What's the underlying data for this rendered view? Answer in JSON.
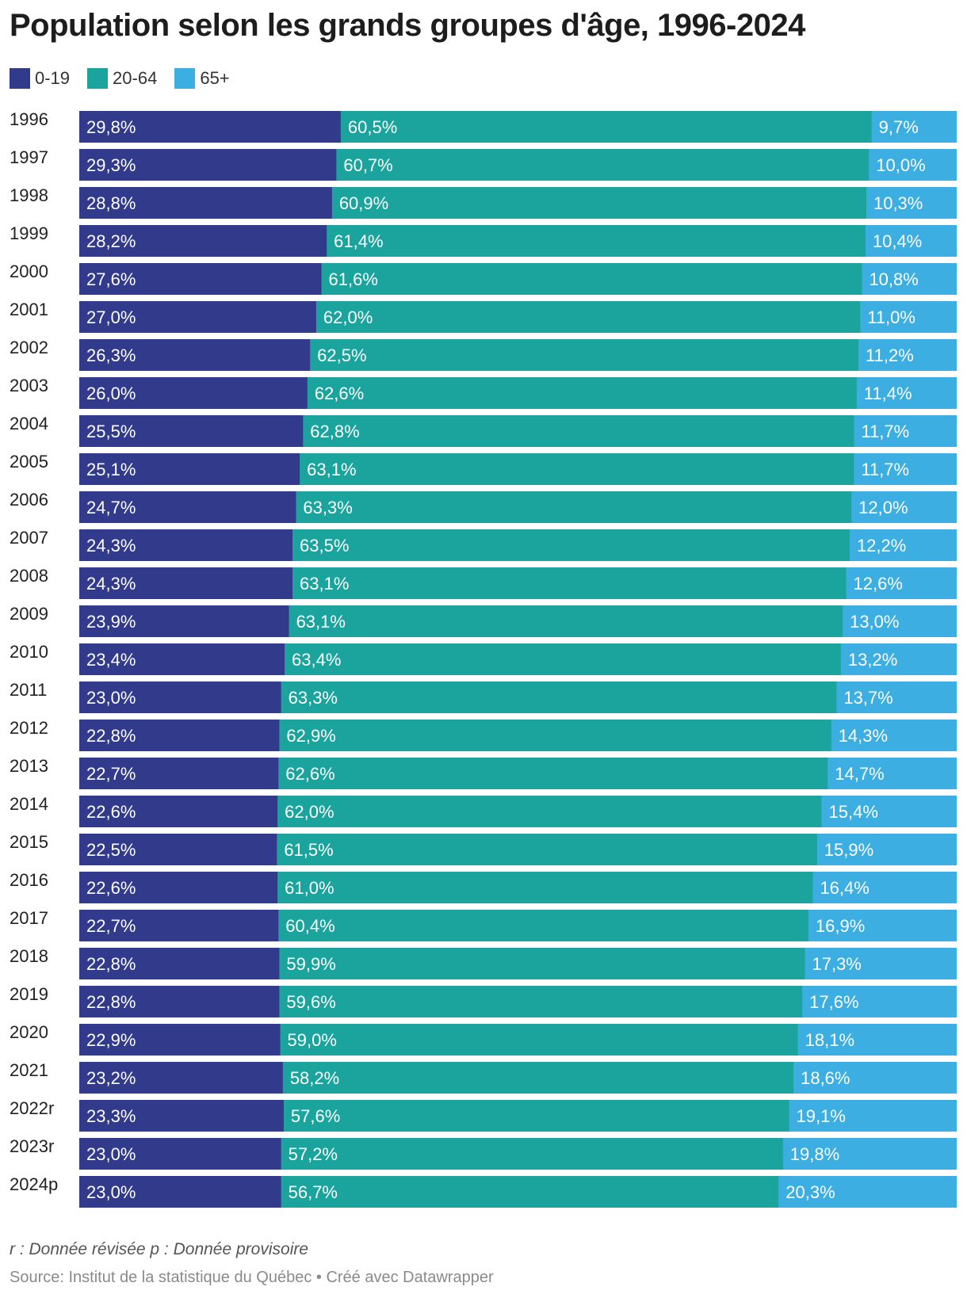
{
  "chart_data": {
    "type": "bar",
    "orientation": "horizontal",
    "stacked": true,
    "title": "Population selon les grands groupes d'âge, 1996-2024",
    "legend_position": "top-left",
    "categories": [
      "1996",
      "1997",
      "1998",
      "1999",
      "2000",
      "2001",
      "2002",
      "2003",
      "2004",
      "2005",
      "2006",
      "2007",
      "2008",
      "2009",
      "2010",
      "2011",
      "2012",
      "2013",
      "2014",
      "2015",
      "2016",
      "2017",
      "2018",
      "2019",
      "2020",
      "2021",
      "2022r",
      "2023r",
      "2024p"
    ],
    "series": [
      {
        "name": "0-19",
        "color": "#323a8c",
        "values": [
          29.8,
          29.3,
          28.8,
          28.2,
          27.6,
          27.0,
          26.3,
          26.0,
          25.5,
          25.1,
          24.7,
          24.3,
          24.3,
          23.9,
          23.4,
          23.0,
          22.8,
          22.7,
          22.6,
          22.5,
          22.6,
          22.7,
          22.8,
          22.8,
          22.9,
          23.2,
          23.3,
          23.0,
          23.0
        ]
      },
      {
        "name": "20-64",
        "color": "#1aa49d",
        "values": [
          60.5,
          60.7,
          60.9,
          61.4,
          61.6,
          62.0,
          62.5,
          62.6,
          62.8,
          63.1,
          63.3,
          63.5,
          63.1,
          63.1,
          63.4,
          63.3,
          62.9,
          62.6,
          62.0,
          61.5,
          61.0,
          60.4,
          59.9,
          59.6,
          59.0,
          58.2,
          57.6,
          57.2,
          56.7
        ]
      },
      {
        "name": "65+",
        "color": "#3caee1",
        "values": [
          9.7,
          10.0,
          10.3,
          10.4,
          10.8,
          11.0,
          11.2,
          11.4,
          11.7,
          11.7,
          12.0,
          12.2,
          12.6,
          13.0,
          13.2,
          13.7,
          14.3,
          14.7,
          15.4,
          15.9,
          16.4,
          16.9,
          17.3,
          17.6,
          18.1,
          18.6,
          19.1,
          19.8,
          20.3
        ]
      }
    ],
    "value_labels": {
      "0-19": [
        "29,8%",
        "29,3%",
        "28,8%",
        "28,2%",
        "27,6%",
        "27,0%",
        "26,3%",
        "26,0%",
        "25,5%",
        "25,1%",
        "24,7%",
        "24,3%",
        "24,3%",
        "23,9%",
        "23,4%",
        "23,0%",
        "22,8%",
        "22,7%",
        "22,6%",
        "22,5%",
        "22,6%",
        "22,7%",
        "22,8%",
        "22,8%",
        "22,9%",
        "23,2%",
        "23,3%",
        "23,0%",
        "23,0%"
      ],
      "20-64": [
        "60,5%",
        "60,7%",
        "60,9%",
        "61,4%",
        "61,6%",
        "62,0%",
        "62,5%",
        "62,6%",
        "62,8%",
        "63,1%",
        "63,3%",
        "63,5%",
        "63,1%",
        "63,1%",
        "63,4%",
        "63,3%",
        "62,9%",
        "62,6%",
        "62,0%",
        "61,5%",
        "61,0%",
        "60,4%",
        "59,9%",
        "59,6%",
        "59,0%",
        "58,2%",
        "57,6%",
        "57,2%",
        "56,7%"
      ],
      "65+": [
        "9,7%",
        "10,0%",
        "10,3%",
        "10,4%",
        "10,8%",
        "11,0%",
        "11,2%",
        "11,4%",
        "11,7%",
        "11,7%",
        "12,0%",
        "12,2%",
        "12,6%",
        "13,0%",
        "13,2%",
        "13,7%",
        "14,3%",
        "14,7%",
        "15,4%",
        "15,9%",
        "16,4%",
        "16,9%",
        "17,3%",
        "17,6%",
        "18,1%",
        "18,6%",
        "19,1%",
        "19,8%",
        "20,3%"
      ]
    },
    "note": "r : Donnée révisée p : Donnée provisoire",
    "source": "Source: Institut de la statistique du Québec • Créé avec Datawrapper"
  }
}
